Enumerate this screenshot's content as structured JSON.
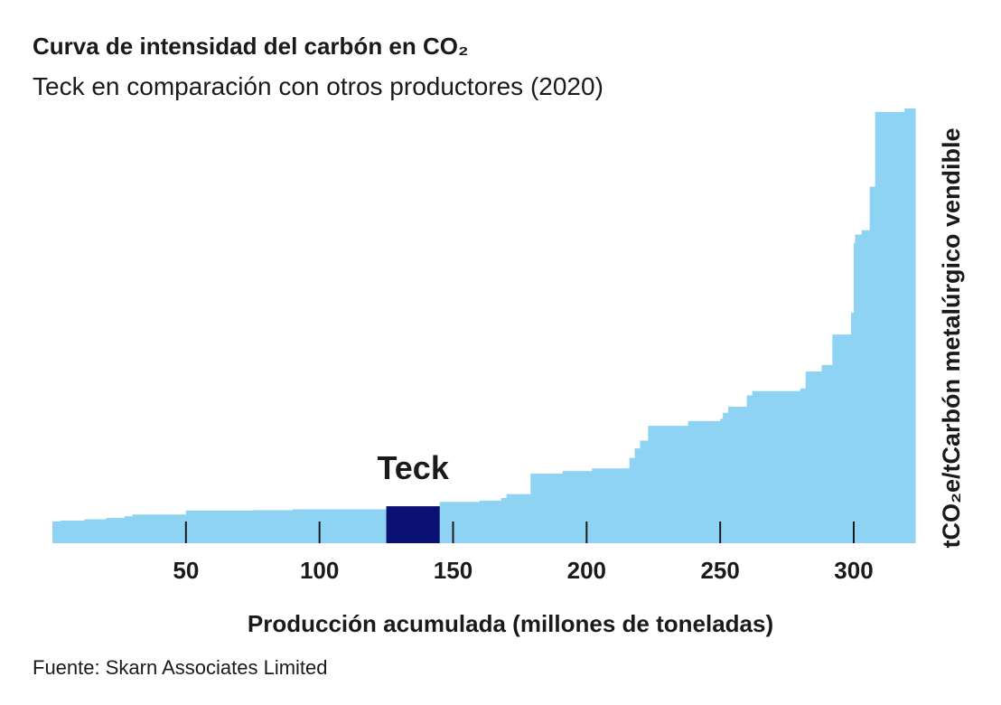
{
  "title": "Curva de intensidad del carbón en CO₂",
  "subtitle": "Teck en comparación con otros productores (2020)",
  "source": "Fuente: Skarn Associates Limited",
  "colors": {
    "bars": "#8ed3f3",
    "highlight": "#0a1172",
    "text": "#1a1a1a"
  },
  "chart_data": {
    "type": "bar",
    "subtype": "cost-curve (variable-width step bars)",
    "title": "Curva de intensidad del carbón en CO₂",
    "subtitle": "Teck en comparación con otros productores (2020)",
    "xlabel": "Producción acumulada (millones de toneladas)",
    "ylabel": "tCO₂e/tCarbón metalúrgico vendible",
    "xlim": [
      0,
      323
    ],
    "ylim": [
      0,
      100
    ],
    "x_ticks": [
      50,
      100,
      150,
      200,
      250,
      300
    ],
    "y_ticks_labeled": false,
    "highlight": {
      "name": "Teck",
      "x_start": 125,
      "x_end": 145,
      "value": 8.5
    },
    "steps": [
      [
        0,
        5
      ],
      [
        3,
        5.2
      ],
      [
        12,
        5.5
      ],
      [
        20,
        5.8
      ],
      [
        27,
        6.2
      ],
      [
        30,
        6.6
      ],
      [
        50,
        7.5
      ],
      [
        75,
        7.6
      ],
      [
        90,
        7.8
      ],
      [
        125,
        8.5
      ],
      [
        145,
        9.5
      ],
      [
        160,
        9.8
      ],
      [
        168,
        10.4
      ],
      [
        170,
        11.3
      ],
      [
        179,
        16
      ],
      [
        191,
        16.6
      ],
      [
        202,
        17.2
      ],
      [
        216,
        19.6
      ],
      [
        218,
        21.8
      ],
      [
        220,
        23.6
      ],
      [
        223,
        27
      ],
      [
        238,
        28.1
      ],
      [
        250,
        28.6
      ],
      [
        251,
        30
      ],
      [
        253,
        31.4
      ],
      [
        260,
        34
      ],
      [
        262,
        35
      ],
      [
        280,
        35.6
      ],
      [
        282,
        39.5
      ],
      [
        288,
        41
      ],
      [
        292,
        48
      ],
      [
        299,
        53
      ],
      [
        300,
        69
      ],
      [
        300.5,
        71
      ],
      [
        303,
        72
      ],
      [
        306,
        82
      ],
      [
        308,
        99.2
      ],
      [
        319,
        100
      ]
    ]
  }
}
